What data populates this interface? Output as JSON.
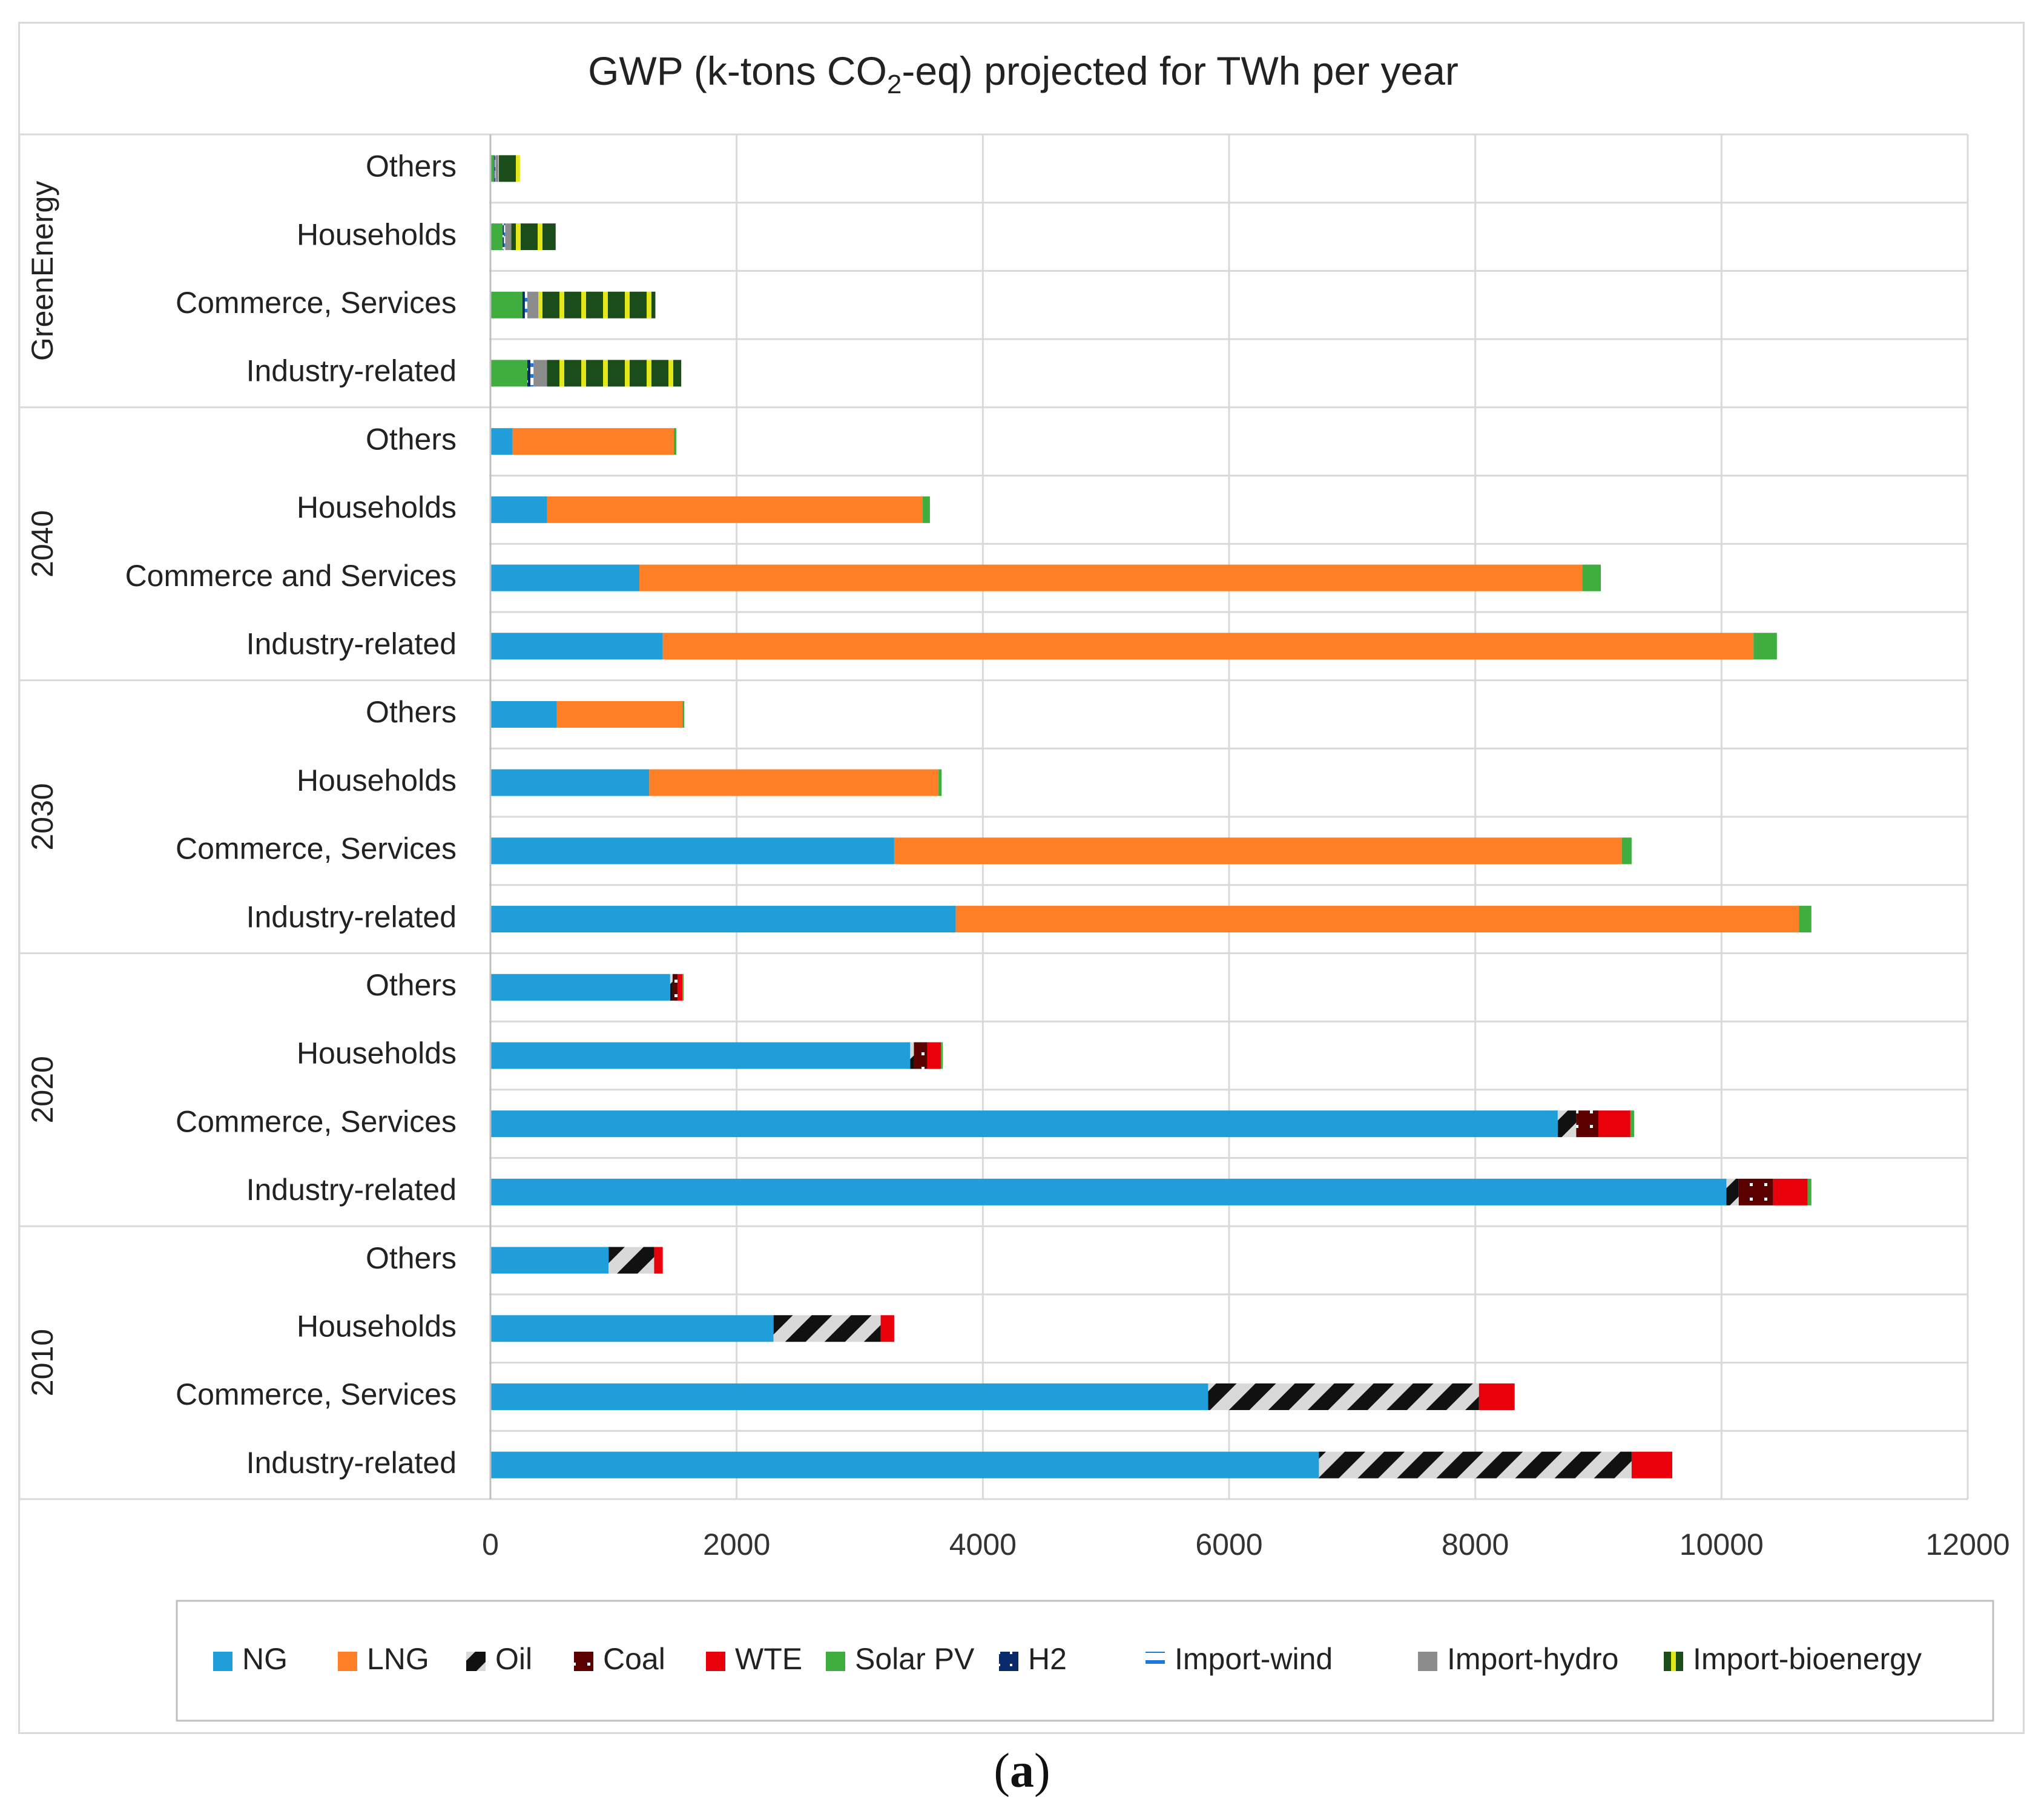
{
  "chart_data": {
    "type": "bar",
    "orientation": "horizontal",
    "stacked": true,
    "title_main": "GWP (k-tons CO",
    "title_sub": "2",
    "title_rest": "-eq) projected for TWh per year",
    "xlim": [
      0,
      12000
    ],
    "xticks": [
      "0",
      "2000",
      "4000",
      "6000",
      "8000",
      "10000",
      "12000"
    ],
    "grid": true,
    "legend_position": "bottom",
    "series_names": [
      "NG",
      "LNG",
      "Oil",
      "Coal",
      "WTE",
      "Solar PV",
      "H2",
      "Import-wind",
      "Import-hydro",
      "Import-bioenergy"
    ],
    "series_colors": {
      "NG": "#1f9ed9",
      "LNG": "#ff7f27",
      "Oil": "#111111",
      "Coal": "#5c0000",
      "WTE": "#e8000b",
      "Solar PV": "#3fae3f",
      "H2": "#0a2a6a",
      "Import-wind": "#1f78d8",
      "Import-hydro": "#8c8c8c",
      "Import-bioenergy": "#1a4d1a"
    },
    "groups": [
      {
        "name": "GreenEnergy",
        "rows": [
          {
            "label": "Others",
            "values": {
              "NG": 0,
              "LNG": 0,
              "Oil": 0,
              "Coal": 0,
              "WTE": 0,
              "Solar PV": 30,
              "H2": 5,
              "Import-wind": 5,
              "Import-hydro": 25,
              "Import-bioenergy": 175
            }
          },
          {
            "label": "Households",
            "values": {
              "NG": 0,
              "LNG": 0,
              "Oil": 0,
              "Coal": 0,
              "WTE": 0,
              "Solar PV": 100,
              "H2": 10,
              "Import-wind": 10,
              "Import-hydro": 50,
              "Import-bioenergy": 360
            }
          },
          {
            "label": "Commerce, Services",
            "values": {
              "NG": 0,
              "LNG": 0,
              "Oil": 0,
              "Coal": 0,
              "WTE": 0,
              "Solar PV": 260,
              "H2": 20,
              "Import-wind": 20,
              "Import-hydro": 90,
              "Import-bioenergy": 950
            }
          },
          {
            "label": "Industry-related",
            "values": {
              "NG": 0,
              "LNG": 0,
              "Oil": 0,
              "Coal": 0,
              "WTE": 0,
              "Solar PV": 300,
              "H2": 25,
              "Import-wind": 25,
              "Import-hydro": 110,
              "Import-bioenergy": 1090
            }
          }
        ]
      },
      {
        "name": "2040",
        "rows": [
          {
            "label": "Others",
            "values": {
              "NG": 180,
              "LNG": 1310,
              "Oil": 0,
              "Coal": 0,
              "WTE": 0,
              "Solar PV": 20,
              "H2": 0,
              "Import-wind": 0,
              "Import-hydro": 0,
              "Import-bioenergy": 0
            }
          },
          {
            "label": "Households",
            "values": {
              "NG": 460,
              "LNG": 3050,
              "Oil": 0,
              "Coal": 0,
              "WTE": 0,
              "Solar PV": 60,
              "H2": 0,
              "Import-wind": 0,
              "Import-hydro": 0,
              "Import-bioenergy": 0
            }
          },
          {
            "label": "Commerce and Services",
            "values": {
              "NG": 1210,
              "LNG": 7660,
              "Oil": 0,
              "Coal": 0,
              "WTE": 0,
              "Solar PV": 150,
              "H2": 0,
              "Import-wind": 0,
              "Import-hydro": 0,
              "Import-bioenergy": 0
            }
          },
          {
            "label": "Industry-related",
            "values": {
              "NG": 1400,
              "LNG": 8860,
              "Oil": 0,
              "Coal": 0,
              "WTE": 0,
              "Solar PV": 190,
              "H2": 0,
              "Import-wind": 0,
              "Import-hydro": 0,
              "Import-bioenergy": 0
            }
          }
        ]
      },
      {
        "name": "2030",
        "rows": [
          {
            "label": "Others",
            "values": {
              "NG": 540,
              "LNG": 1020,
              "Oil": 0,
              "Coal": 0,
              "WTE": 0,
              "Solar PV": 15,
              "H2": 0,
              "Import-wind": 0,
              "Import-hydro": 0,
              "Import-bioenergy": 0
            }
          },
          {
            "label": "Households",
            "values": {
              "NG": 1290,
              "LNG": 2350,
              "Oil": 0,
              "Coal": 0,
              "WTE": 0,
              "Solar PV": 25,
              "H2": 0,
              "Import-wind": 0,
              "Import-hydro": 0,
              "Import-bioenergy": 0
            }
          },
          {
            "label": "Commerce, Services",
            "values": {
              "NG": 3280,
              "LNG": 5910,
              "Oil": 0,
              "Coal": 0,
              "WTE": 0,
              "Solar PV": 80,
              "H2": 0,
              "Import-wind": 0,
              "Import-hydro": 0,
              "Import-bioenergy": 0
            }
          },
          {
            "label": "Industry-related",
            "values": {
              "NG": 3780,
              "LNG": 6850,
              "Oil": 0,
              "Coal": 0,
              "WTE": 0,
              "Solar PV": 100,
              "H2": 0,
              "Import-wind": 0,
              "Import-hydro": 0,
              "Import-bioenergy": 0
            }
          }
        ]
      },
      {
        "name": "2020",
        "rows": [
          {
            "label": "Others",
            "values": {
              "NG": 1460,
              "LNG": 0,
              "Oil": 20,
              "Coal": 40,
              "WTE": 40,
              "Solar PV": 10,
              "H2": 0,
              "Import-wind": 0,
              "Import-hydro": 0,
              "Import-bioenergy": 0
            }
          },
          {
            "label": "Households",
            "values": {
              "NG": 3410,
              "LNG": 0,
              "Oil": 30,
              "Coal": 110,
              "WTE": 110,
              "Solar PV": 15,
              "H2": 0,
              "Import-wind": 0,
              "Import-hydro": 0,
              "Import-bioenergy": 0
            }
          },
          {
            "label": "Commerce, Services",
            "values": {
              "NG": 8670,
              "LNG": 0,
              "Oil": 150,
              "Coal": 180,
              "WTE": 260,
              "Solar PV": 30,
              "H2": 0,
              "Import-wind": 0,
              "Import-hydro": 0,
              "Import-bioenergy": 0
            }
          },
          {
            "label": "Industry-related",
            "values": {
              "NG": 10040,
              "LNG": 0,
              "Oil": 100,
              "Coal": 280,
              "WTE": 280,
              "Solar PV": 30,
              "H2": 0,
              "Import-wind": 0,
              "Import-hydro": 0,
              "Import-bioenergy": 0
            }
          }
        ]
      },
      {
        "name": "2010",
        "rows": [
          {
            "label": "Others",
            "values": {
              "NG": 960,
              "LNG": 0,
              "Oil": 370,
              "Coal": 0,
              "WTE": 70,
              "Solar PV": 0,
              "H2": 0,
              "Import-wind": 0,
              "Import-hydro": 0,
              "Import-bioenergy": 0
            }
          },
          {
            "label": "Households",
            "values": {
              "NG": 2300,
              "LNG": 0,
              "Oil": 870,
              "Coal": 0,
              "WTE": 110,
              "Solar PV": 0,
              "H2": 0,
              "Import-wind": 0,
              "Import-hydro": 0,
              "Import-bioenergy": 0
            }
          },
          {
            "label": "Commerce, Services",
            "values": {
              "NG": 5830,
              "LNG": 0,
              "Oil": 2200,
              "Coal": 0,
              "WTE": 290,
              "Solar PV": 0,
              "H2": 0,
              "Import-wind": 0,
              "Import-hydro": 0,
              "Import-bioenergy": 0
            }
          },
          {
            "label": "Industry-related",
            "values": {
              "NG": 6730,
              "LNG": 0,
              "Oil": 2540,
              "Coal": 0,
              "WTE": 330,
              "Solar PV": 0,
              "H2": 0,
              "Import-wind": 0,
              "Import-hydro": 0,
              "Import-bioenergy": 0
            }
          }
        ]
      }
    ]
  },
  "caption": {
    "open": "(",
    "letter": "a",
    "close": ")"
  }
}
